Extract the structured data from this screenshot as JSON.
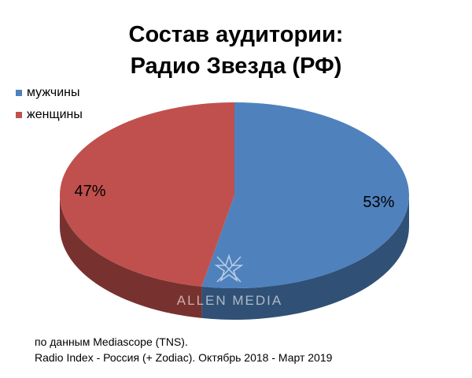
{
  "chart_data": {
    "type": "pie",
    "title_lines": [
      "Состав аудитории:",
      "Радио Звезда (РФ)"
    ],
    "categories": [
      "мужчины",
      "женщины"
    ],
    "values": [
      53,
      47
    ],
    "data_labels": [
      "53%",
      "47%"
    ],
    "colors": [
      "#4F81BD",
      "#C0504D"
    ],
    "legend_position": "top-left",
    "three_d": true
  },
  "watermark": "ALLEN MEDIA",
  "footer": {
    "line1": "по данным Mediascope (TNS).",
    "line2": "Radio Index - Россия (+ Zodiac). Октябрь 2018 - Март 2019"
  }
}
